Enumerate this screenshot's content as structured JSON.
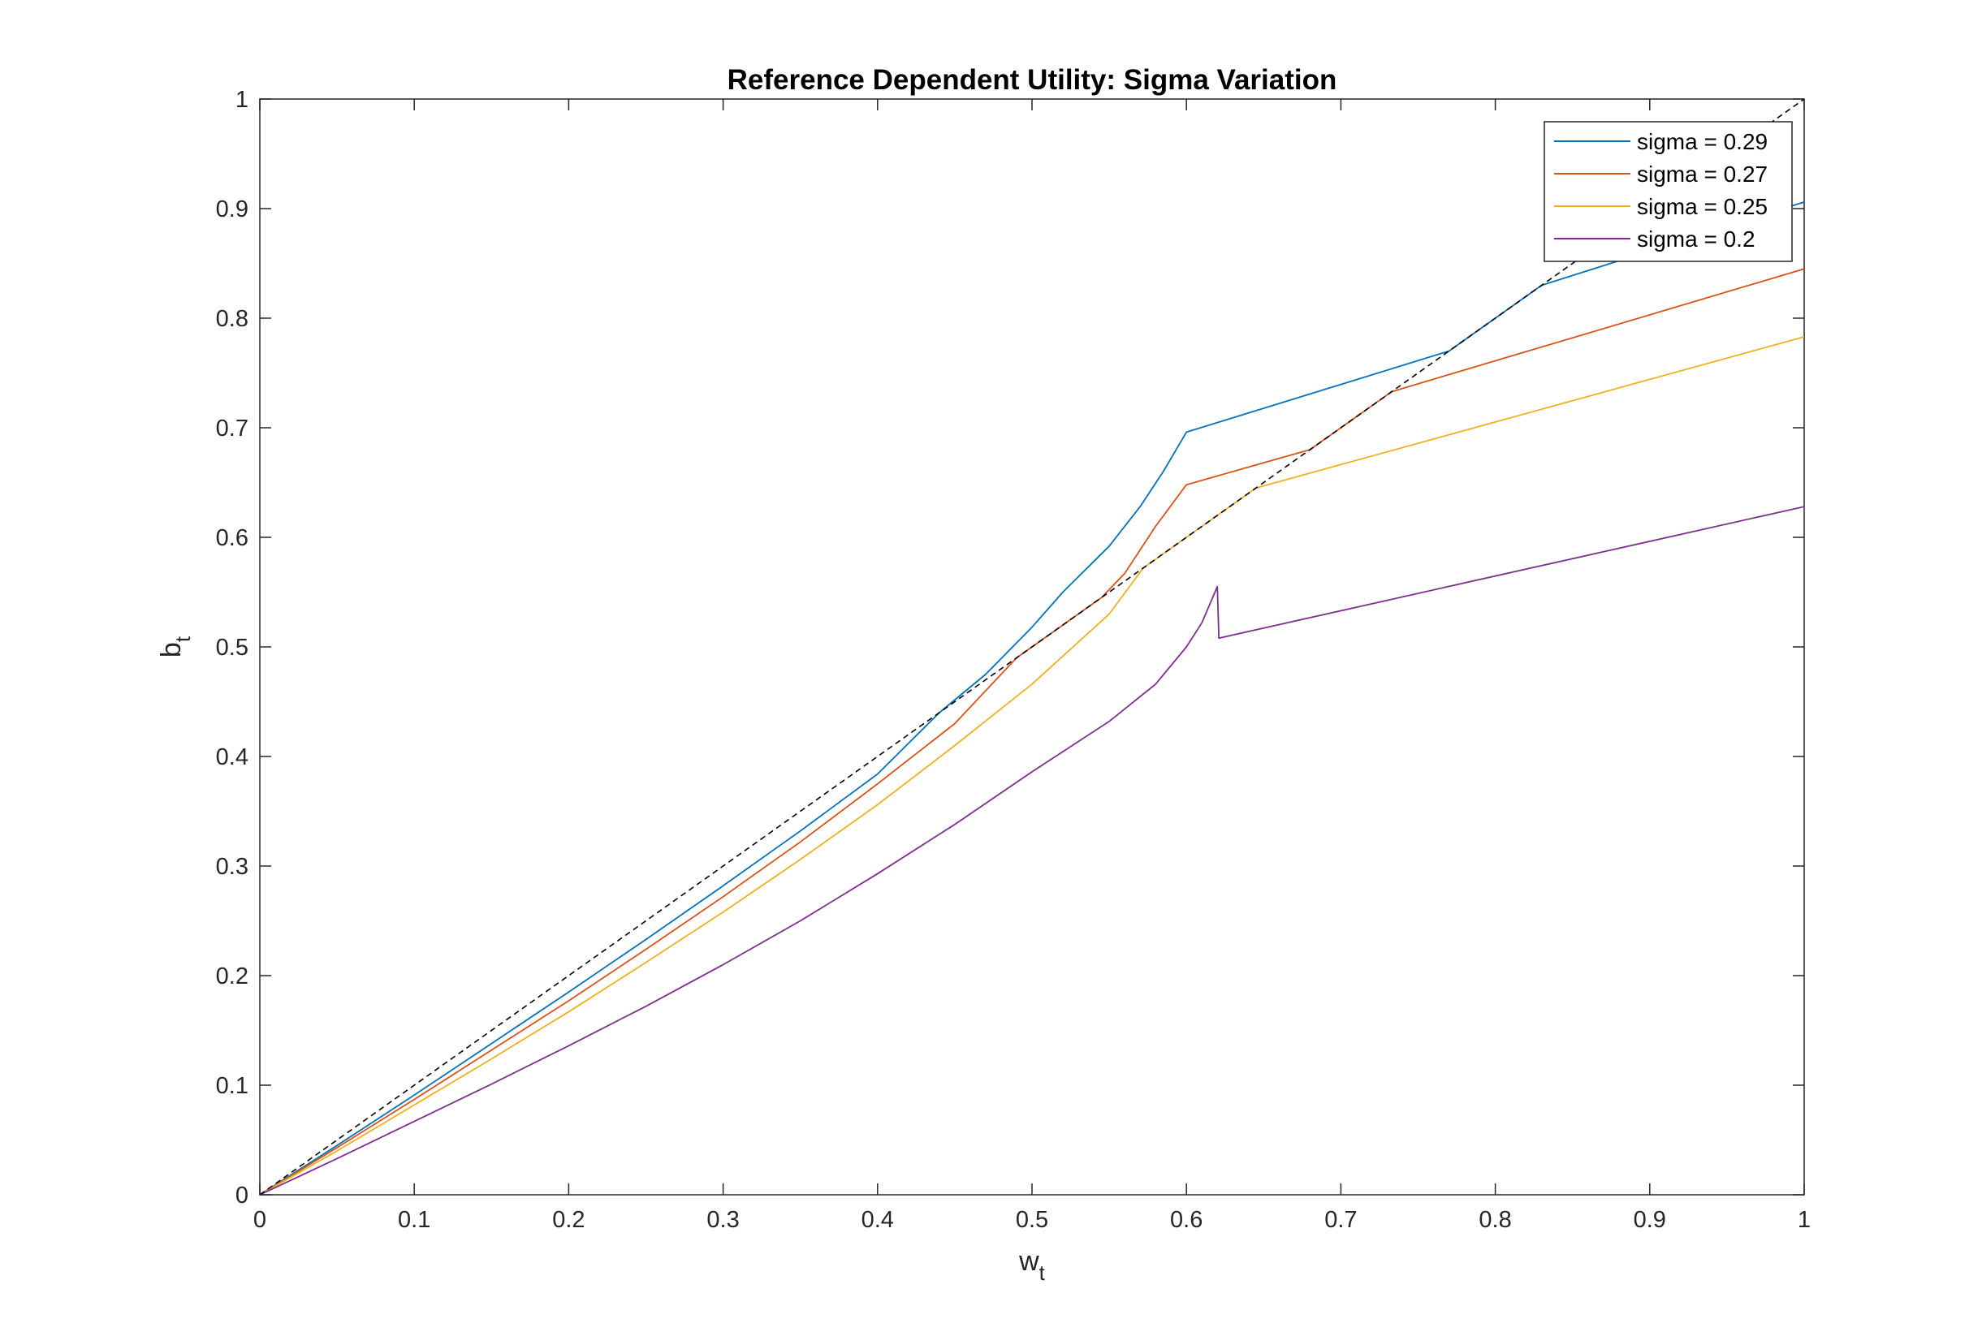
{
  "chart_data": {
    "type": "line",
    "title": "Reference Dependent Utility: Sigma Variation",
    "xlabel": {
      "main": "w",
      "sub": "t"
    },
    "ylabel": {
      "main": "b",
      "sub": "t"
    },
    "xlim": [
      0,
      1
    ],
    "ylim": [
      0,
      1
    ],
    "xticks": [
      0,
      0.1,
      0.2,
      0.3,
      0.4,
      0.5,
      0.6,
      0.7,
      0.8,
      0.9,
      1
    ],
    "xtick_labels": [
      "0",
      "0.1",
      "0.2",
      "0.3",
      "0.4",
      "0.5",
      "0.6",
      "0.7",
      "0.8",
      "0.9",
      "1"
    ],
    "yticks": [
      0,
      0.1,
      0.2,
      0.3,
      0.4,
      0.5,
      0.6,
      0.7,
      0.8,
      0.9,
      1
    ],
    "ytick_labels": [
      "0",
      "0.1",
      "0.2",
      "0.3",
      "0.4",
      "0.5",
      "0.6",
      "0.7",
      "0.8",
      "0.9",
      "1"
    ],
    "grid": false,
    "legend_position": "top-right",
    "series": [
      {
        "name": "sigma = 0.29",
        "color": "#0072BD",
        "points": [
          [
            0,
            0
          ],
          [
            0.05,
            0.045
          ],
          [
            0.1,
            0.091
          ],
          [
            0.15,
            0.138
          ],
          [
            0.2,
            0.185
          ],
          [
            0.25,
            0.233
          ],
          [
            0.3,
            0.282
          ],
          [
            0.35,
            0.332
          ],
          [
            0.4,
            0.384
          ],
          [
            0.44,
            0.44
          ],
          [
            0.47,
            0.475
          ],
          [
            0.5,
            0.518
          ],
          [
            0.52,
            0.55
          ],
          [
            0.55,
            0.592
          ],
          [
            0.57,
            0.628
          ],
          [
            0.585,
            0.66
          ],
          [
            0.6,
            0.696
          ],
          [
            0.77,
            0.77
          ],
          [
            0.83,
            0.83
          ],
          [
            1.0,
            0.906
          ]
        ]
      },
      {
        "name": "sigma = 0.27",
        "color": "#D95319",
        "points": [
          [
            0,
            0
          ],
          [
            0.05,
            0.043
          ],
          [
            0.1,
            0.087
          ],
          [
            0.15,
            0.132
          ],
          [
            0.2,
            0.177
          ],
          [
            0.25,
            0.224
          ],
          [
            0.3,
            0.272
          ],
          [
            0.35,
            0.322
          ],
          [
            0.4,
            0.375
          ],
          [
            0.45,
            0.43
          ],
          [
            0.49,
            0.49
          ],
          [
            0.545,
            0.545
          ],
          [
            0.56,
            0.567
          ],
          [
            0.58,
            0.61
          ],
          [
            0.6,
            0.648
          ],
          [
            0.68,
            0.68
          ],
          [
            0.733,
            0.733
          ],
          [
            1.0,
            0.845
          ]
        ]
      },
      {
        "name": "sigma = 0.25",
        "color": "#EDB120",
        "points": [
          [
            0,
            0
          ],
          [
            0.05,
            0.04
          ],
          [
            0.1,
            0.082
          ],
          [
            0.15,
            0.124
          ],
          [
            0.2,
            0.167
          ],
          [
            0.25,
            0.212
          ],
          [
            0.3,
            0.258
          ],
          [
            0.35,
            0.306
          ],
          [
            0.4,
            0.356
          ],
          [
            0.45,
            0.41
          ],
          [
            0.5,
            0.466
          ],
          [
            0.55,
            0.53
          ],
          [
            0.572,
            0.572
          ],
          [
            0.645,
            0.645
          ],
          [
            1.0,
            0.783
          ]
        ]
      },
      {
        "name": "sigma = 0.2",
        "color": "#7E2F8E",
        "points": [
          [
            0,
            0
          ],
          [
            0.05,
            0.033
          ],
          [
            0.1,
            0.067
          ],
          [
            0.15,
            0.101
          ],
          [
            0.2,
            0.136
          ],
          [
            0.25,
            0.172
          ],
          [
            0.3,
            0.21
          ],
          [
            0.35,
            0.25
          ],
          [
            0.4,
            0.293
          ],
          [
            0.45,
            0.338
          ],
          [
            0.5,
            0.386
          ],
          [
            0.55,
            0.432
          ],
          [
            0.58,
            0.466
          ],
          [
            0.6,
            0.5
          ],
          [
            0.61,
            0.522
          ],
          [
            0.62,
            0.555
          ],
          [
            0.621,
            0.508
          ],
          [
            1.0,
            0.628
          ]
        ]
      },
      {
        "name": "",
        "color": "#000000",
        "dashed": true,
        "points": [
          [
            0,
            0
          ],
          [
            1,
            1
          ]
        ]
      }
    ]
  }
}
